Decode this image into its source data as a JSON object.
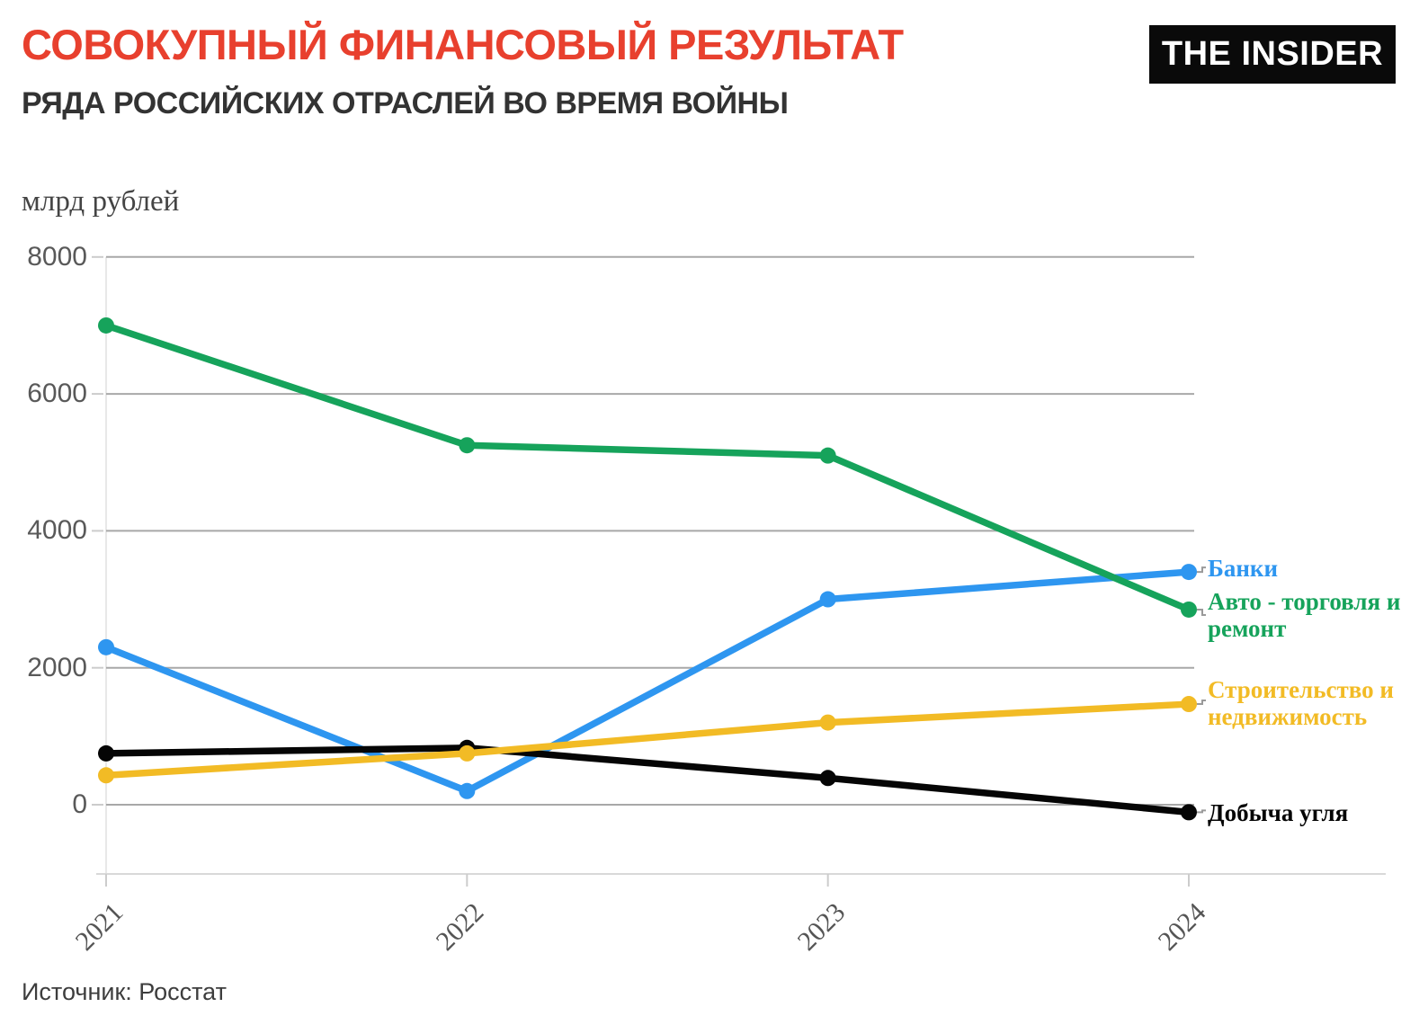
{
  "header": {
    "title": "СОВОКУПНЫЙ ФИНАНСОВЫЙ РЕЗУЛЬТАТ",
    "subtitle": "РЯДА РОССИЙСКИХ ОТРАСЛЕЙ ВО ВРЕМЯ ВОЙНЫ",
    "logo_text": "THE INSIDER"
  },
  "chart_data": {
    "type": "line",
    "title": "СОВОКУПНЫЙ ФИНАНСОВЫЙ РЕЗУЛЬТАТ",
    "subtitle": "РЯДА РОССИЙСКИХ ОТРАСЛЕЙ ВО ВРЕМЯ ВОЙНЫ",
    "ylabel": "млрд рублей",
    "xlabel": "",
    "x": [
      "2021",
      "2022",
      "2023",
      "2024"
    ],
    "yticks": [
      0,
      2000,
      4000,
      6000,
      8000
    ],
    "ylim": [
      -500,
      8000
    ],
    "grid": "horizontal",
    "legend_position": "right-of-line-ends",
    "series": [
      {
        "key": "auto",
        "name": "Авто - торговля и ремонт",
        "color": "#16a35b",
        "values": [
          7000,
          5250,
          5100,
          2850
        ]
      },
      {
        "key": "banks",
        "name": "Банки",
        "color": "#2e96f0",
        "values": [
          2300,
          200,
          3000,
          3400
        ]
      },
      {
        "key": "construction",
        "name": "Строительство и недвижимость",
        "color": "#f2bb25",
        "values": [
          430,
          750,
          1200,
          1470
        ]
      },
      {
        "key": "coal",
        "name": "Добыча угля",
        "color": "#050505",
        "values": [
          750,
          830,
          390,
          -110
        ]
      }
    ]
  },
  "footer": {
    "source": "Источник: Росстат"
  }
}
